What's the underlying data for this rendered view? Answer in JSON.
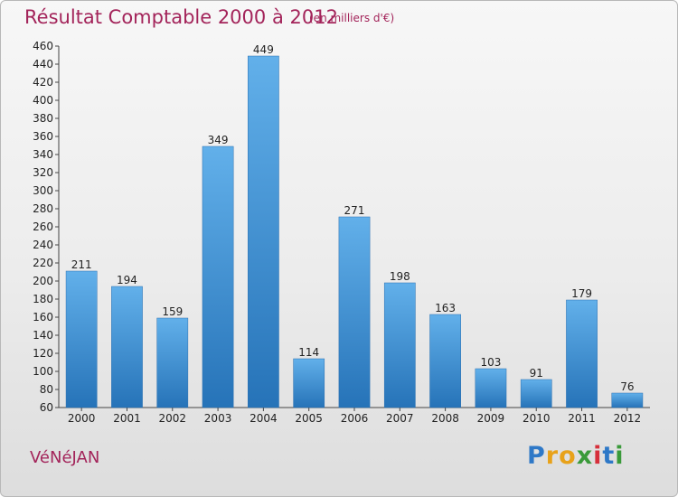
{
  "chart_data": {
    "type": "bar",
    "title": "Résultat Comptable 2000 à 2012",
    "subtitle": "(en milliers d'€)",
    "categories": [
      "2000",
      "2001",
      "2002",
      "2003",
      "2004",
      "2005",
      "2006",
      "2007",
      "2008",
      "2009",
      "2010",
      "2011",
      "2012"
    ],
    "values": [
      211,
      194,
      159,
      349,
      449,
      114,
      271,
      198,
      163,
      103,
      91,
      179,
      76
    ],
    "xlabel": "",
    "ylabel": "",
    "ylim": [
      60,
      460
    ],
    "ytick_step": 20,
    "grid": false,
    "bar_color": "#3f93d8"
  },
  "footer": {
    "commune": "VéNéJAN"
  },
  "brand": {
    "letters": [
      "P",
      "r",
      "o",
      "x",
      "i",
      "t",
      "i"
    ],
    "colors": [
      "#2e78c7",
      "#e8a21a",
      "#e8a21a",
      "#3a9a3a",
      "#d6303b",
      "#2e78c7",
      "#3a9a3a"
    ]
  }
}
